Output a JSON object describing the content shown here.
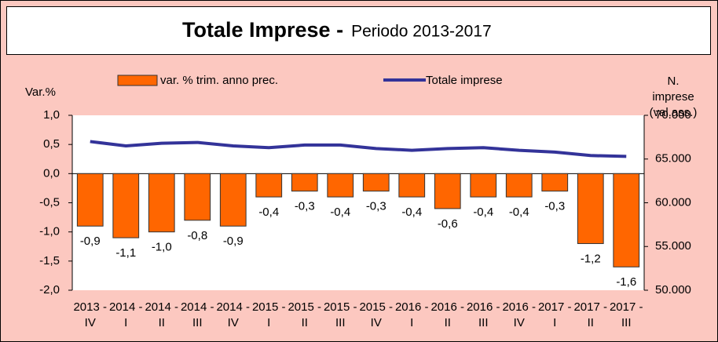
{
  "chart_data": {
    "type": "bar_line",
    "title": "Totale Imprese -",
    "subtitle": "Periodo 2013-2017",
    "y_label": "Var.%",
    "y2_label": "N. imprese (val.ass.)",
    "categories": [
      "2013 - IV",
      "2014 - I",
      "2014 - II",
      "2014 - III",
      "2014 - IV",
      "2015 - I",
      "2015 - II",
      "2015 - III",
      "2015 - IV",
      "2016 - I",
      "2016 - II",
      "2016 - III",
      "2016 - IV",
      "2017 - I",
      "2017 - II",
      "2017 - III"
    ],
    "series": [
      {
        "name": "var. % trim. anno prec.",
        "color": "#ff6600",
        "kind": "bar",
        "values": [
          -0.9,
          -1.1,
          -1.0,
          -0.8,
          -0.9,
          -0.4,
          -0.3,
          -0.4,
          -0.3,
          -0.4,
          -0.6,
          -0.4,
          -0.4,
          -0.3,
          -1.2,
          -1.6
        ],
        "value_labels": [
          "-0,9",
          "-1,1",
          "-1,0",
          "-0,8",
          "-0,9",
          "-0,4",
          "-0,3",
          "-0,4",
          "-0,3",
          "-0,4",
          "-0,6",
          "-0,4",
          "-0,4",
          "-0,3",
          "-1,2",
          "-1,6"
        ]
      },
      {
        "name": "Totale imprese",
        "color": "#333399",
        "kind": "line",
        "axis": "y2",
        "values": [
          67000,
          66500,
          66800,
          66900,
          66500,
          66300,
          66600,
          66600,
          66200,
          66000,
          66200,
          66300,
          66000,
          65800,
          65400,
          65300
        ]
      }
    ],
    "ylim": [
      -2,
      1
    ],
    "yticks": [
      {
        "value": 1,
        "label": "1,0"
      },
      {
        "value": 0.5,
        "label": "0,5"
      },
      {
        "value": 0,
        "label": "0,0"
      },
      {
        "value": -0.5,
        "label": "-0,5"
      },
      {
        "value": -1,
        "label": "-1,0"
      },
      {
        "value": -1.5,
        "label": "-1,5"
      },
      {
        "value": -2,
        "label": "-2,0"
      }
    ],
    "y2lim": [
      50000,
      70000
    ],
    "y2ticks": [
      {
        "value": 70000,
        "label": "70.000"
      },
      {
        "value": 65000,
        "label": "65.000"
      },
      {
        "value": 60000,
        "label": "60.000"
      },
      {
        "value": 55000,
        "label": "55.000"
      },
      {
        "value": 50000,
        "label": "50.000"
      }
    ]
  }
}
